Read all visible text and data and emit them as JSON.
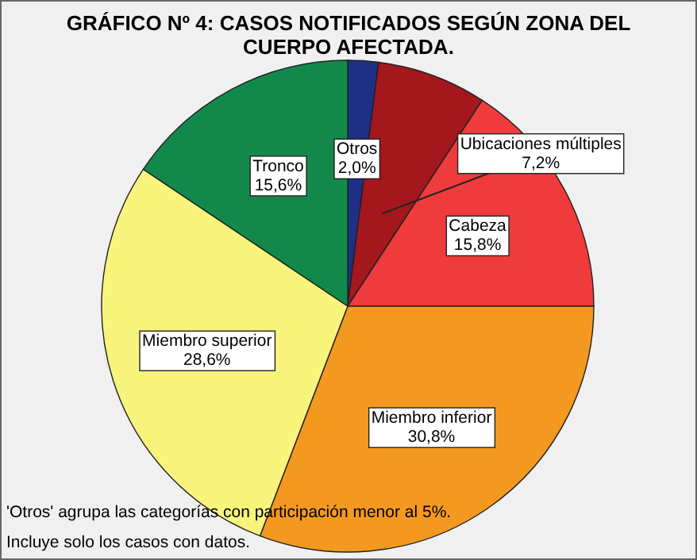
{
  "chart_data": {
    "type": "pie",
    "title": "GRÁFICO Nº 4: CASOS NOTIFICADOS SEGÚN ZONA DEL CUERPO AFECTADA.",
    "categories": [
      "Otros",
      "Ubicaciones múltiples",
      "Cabeza",
      "Miembro inferior",
      "Miembro superior",
      "Tronco"
    ],
    "values": [
      2.0,
      7.2,
      15.8,
      30.8,
      28.6,
      15.6
    ],
    "value_labels": [
      "2,0%",
      "7,2%",
      "15,8%",
      "30,8%",
      "28,6%",
      "15,6%"
    ],
    "colors": [
      "#1f2f86",
      "#a3171d",
      "#ef3b3b",
      "#f4991f",
      "#f8f47c",
      "#12894a"
    ],
    "annotations": [
      "'Otros' agrupa las categorías con participación menor al 5%.",
      "Incluye solo los casos con datos."
    ]
  }
}
